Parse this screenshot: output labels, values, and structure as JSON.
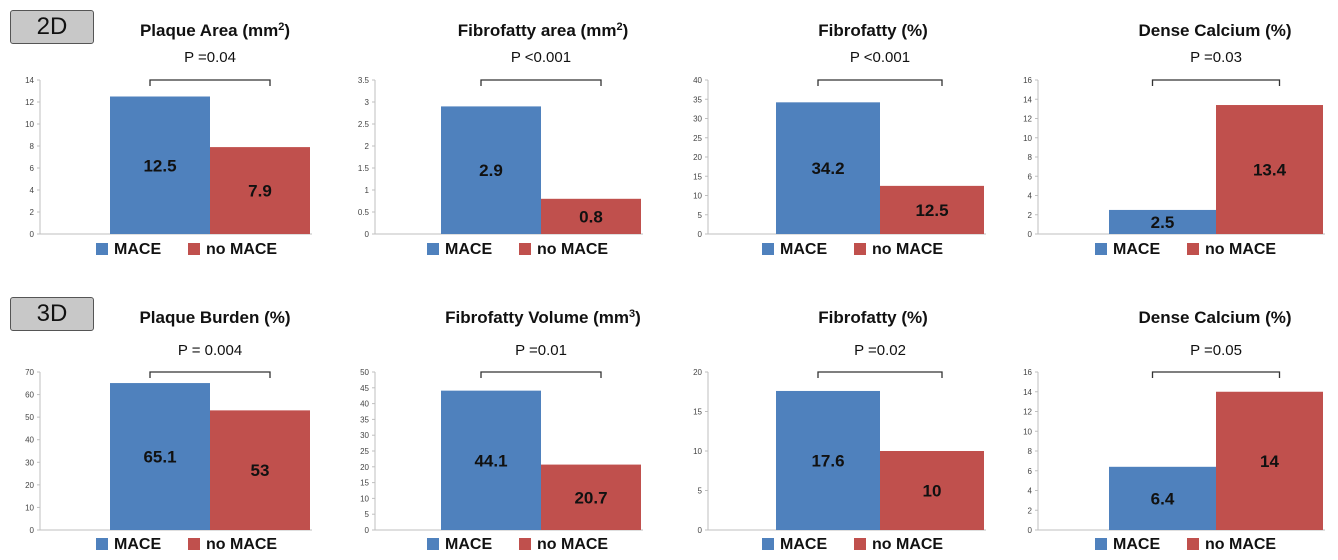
{
  "rows": [
    {
      "label": "2D"
    },
    {
      "label": "3D"
    }
  ],
  "colors": {
    "mace": "#4f81bd",
    "no_mace": "#c0504d",
    "axis": "#bfbfbf",
    "text": "#111111"
  },
  "chart_data": [
    {
      "type": "bar",
      "title": "Plaque Area (mm",
      "title_sup": "2",
      "title_end": ")",
      "categories": [
        "MACE",
        "no MACE"
      ],
      "values": [
        12.5,
        7.9
      ],
      "value_labels": [
        "12.5",
        "7.9"
      ],
      "ylim": [
        0,
        14
      ],
      "yticks": [
        "0",
        "2",
        "4",
        "6",
        "8",
        "10",
        "12",
        "14"
      ],
      "pvalue": "P =0.04",
      "legend": [
        "MACE",
        "no MACE"
      ],
      "grid": false,
      "legend_position": "bottom"
    },
    {
      "type": "bar",
      "title": "Fibrofatty area (mm",
      "title_sup": "2",
      "title_end": ")",
      "categories": [
        "MACE",
        "no MACE"
      ],
      "values": [
        2.9,
        0.8
      ],
      "value_labels": [
        "2.9",
        "0.8"
      ],
      "ylim": [
        0,
        3.5
      ],
      "yticks": [
        "0",
        "0.5",
        "1",
        "1.5",
        "2",
        "2.5",
        "3",
        "3.5"
      ],
      "pvalue": "P <0.001",
      "legend": [
        "MACE",
        "no MACE"
      ],
      "grid": false,
      "legend_position": "bottom"
    },
    {
      "type": "bar",
      "title": "Fibrofatty (%)",
      "title_sup": "",
      "title_end": "",
      "categories": [
        "MACE",
        "no MACE"
      ],
      "values": [
        34.2,
        12.5
      ],
      "value_labels": [
        "34.2",
        "12.5"
      ],
      "ylim": [
        0,
        40
      ],
      "yticks": [
        "0",
        "5",
        "10",
        "15",
        "20",
        "25",
        "30",
        "35",
        "40"
      ],
      "pvalue": "P <0.001",
      "legend": [
        "MACE",
        "no MACE"
      ],
      "grid": false,
      "legend_position": "bottom"
    },
    {
      "type": "bar",
      "title": "Dense Calcium (%)",
      "title_sup": "",
      "title_end": "",
      "categories": [
        "MACE",
        "no MACE"
      ],
      "values": [
        2.5,
        13.4
      ],
      "value_labels": [
        "2.5",
        "13.4"
      ],
      "ylim": [
        0,
        16
      ],
      "yticks": [
        "0",
        "2",
        "4",
        "6",
        "8",
        "10",
        "12",
        "14",
        "16"
      ],
      "pvalue": "P =0.03",
      "legend": [
        "MACE",
        "no MACE"
      ],
      "grid": false,
      "legend_position": "bottom"
    },
    {
      "type": "bar",
      "title": "Plaque Burden (%)",
      "title_sup": "",
      "title_end": "",
      "categories": [
        "MACE",
        "no MACE"
      ],
      "values": [
        65.1,
        53
      ],
      "value_labels": [
        "65.1",
        "53"
      ],
      "ylim": [
        0,
        70
      ],
      "yticks": [
        "0",
        "10",
        "20",
        "30",
        "40",
        "50",
        "60",
        "70"
      ],
      "pvalue": "P = 0.004",
      "legend": [
        "MACE",
        "no MACE"
      ],
      "grid": false,
      "legend_position": "bottom"
    },
    {
      "type": "bar",
      "title": "Fibrofatty Volume (mm",
      "title_sup": "3",
      "title_end": ")",
      "categories": [
        "MACE",
        "no MACE"
      ],
      "values": [
        44.1,
        20.7
      ],
      "value_labels": [
        "44.1",
        "20.7"
      ],
      "ylim": [
        0,
        50
      ],
      "yticks": [
        "0",
        "5",
        "10",
        "15",
        "20",
        "25",
        "30",
        "35",
        "40",
        "45",
        "50"
      ],
      "pvalue": "P =0.01",
      "legend": [
        "MACE",
        "no MACE"
      ],
      "grid": false,
      "legend_position": "bottom"
    },
    {
      "type": "bar",
      "title": "Fibrofatty (%)",
      "title_sup": "",
      "title_end": "",
      "categories": [
        "MACE",
        "no MACE"
      ],
      "values": [
        17.6,
        10
      ],
      "value_labels": [
        "17.6",
        "10"
      ],
      "ylim": [
        0,
        20
      ],
      "yticks": [
        "0",
        "5",
        "10",
        "15",
        "20"
      ],
      "pvalue": "P =0.02",
      "legend": [
        "MACE",
        "no MACE"
      ],
      "grid": false,
      "legend_position": "bottom"
    },
    {
      "type": "bar",
      "title": "Dense Calcium (%)",
      "title_sup": "",
      "title_end": "",
      "categories": [
        "MACE",
        "no MACE"
      ],
      "values": [
        6.4,
        14
      ],
      "value_labels": [
        "6.4",
        "14"
      ],
      "ylim": [
        0,
        16
      ],
      "yticks": [
        "0",
        "2",
        "4",
        "6",
        "8",
        "10",
        "12",
        "14",
        "16"
      ],
      "pvalue": "P =0.05",
      "legend": [
        "MACE",
        "no MACE"
      ],
      "grid": false,
      "legend_position": "bottom"
    }
  ]
}
